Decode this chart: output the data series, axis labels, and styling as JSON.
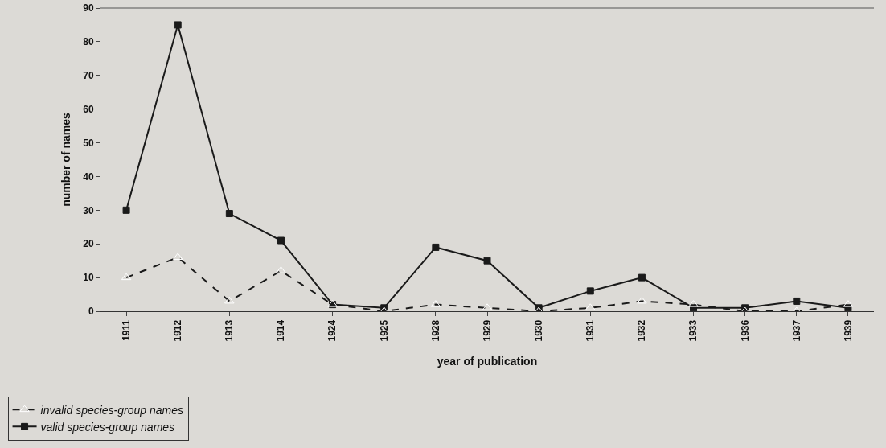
{
  "chart_data": {
    "type": "line",
    "xlabel": "year of publication",
    "ylabel": "number of names",
    "categories": [
      "1911",
      "1912",
      "1913",
      "1914",
      "1924",
      "1925",
      "1928",
      "1929",
      "1930",
      "1931",
      "1932",
      "1933",
      "1936",
      "1937",
      "1939"
    ],
    "series": [
      {
        "name": "invalid species-group names",
        "color": "#1a1a1a",
        "marker": "triangle",
        "line_style": "dashed",
        "values": [
          10,
          16,
          3,
          12,
          2,
          0,
          2,
          1,
          0,
          1,
          3,
          2,
          0,
          0,
          2
        ]
      },
      {
        "name": "valid species-group names",
        "color": "#1a1a1a",
        "marker": "square",
        "line_style": "solid",
        "values": [
          30,
          85,
          29,
          21,
          2,
          1,
          19,
          15,
          1,
          6,
          10,
          1,
          1,
          3,
          1
        ]
      }
    ],
    "ylim": [
      0,
      90
    ],
    "yticks": [
      0,
      10,
      20,
      30,
      40,
      50,
      60,
      70,
      80,
      90
    ],
    "grid": false,
    "legend": "bottom left"
  }
}
